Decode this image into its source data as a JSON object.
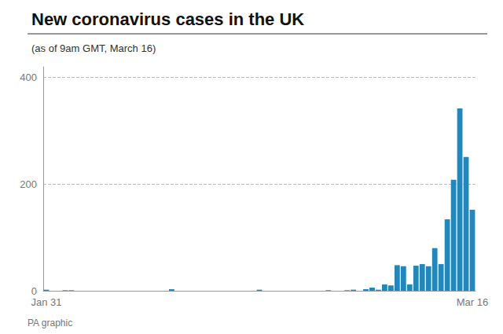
{
  "chart_data": {
    "type": "bar",
    "title": "New coronavirus cases in the UK",
    "subtitle": "(as of 9am GMT, March 16)",
    "footer": "PA graphic",
    "categories": [
      "Jan 31",
      null,
      null,
      null,
      null,
      null,
      null,
      null,
      null,
      null,
      null,
      null,
      null,
      null,
      null,
      null,
      null,
      null,
      null,
      null,
      null,
      null,
      null,
      null,
      null,
      null,
      null,
      null,
      null,
      null,
      null,
      null,
      null,
      null,
      null,
      null,
      null,
      null,
      null,
      null,
      null,
      null,
      null,
      null,
      null,
      null,
      null,
      null,
      null,
      null,
      null,
      null,
      null,
      null,
      null,
      null,
      null,
      null,
      null,
      null,
      null,
      null,
      null,
      null,
      null,
      null,
      null,
      null,
      "Mar 16"
    ],
    "values": [
      2,
      0,
      0,
      1,
      1,
      0,
      0,
      0,
      0,
      0,
      0,
      0,
      0,
      0,
      0,
      0,
      0,
      0,
      0,
      0,
      3,
      0,
      0,
      0,
      0,
      0,
      0,
      0,
      0,
      0,
      0,
      0,
      0,
      0,
      2,
      0,
      0,
      0,
      0,
      0,
      0,
      0,
      0,
      0,
      0,
      1,
      0,
      0,
      1,
      2,
      0,
      3,
      6,
      2,
      12,
      10,
      48,
      46,
      12,
      47,
      50,
      46,
      80,
      50,
      134,
      208,
      342,
      251,
      152
    ],
    "color": "#2288bb",
    "ylim": [
      0,
      420
    ],
    "yticks": [
      0,
      200,
      400
    ],
    "grid": true
  }
}
